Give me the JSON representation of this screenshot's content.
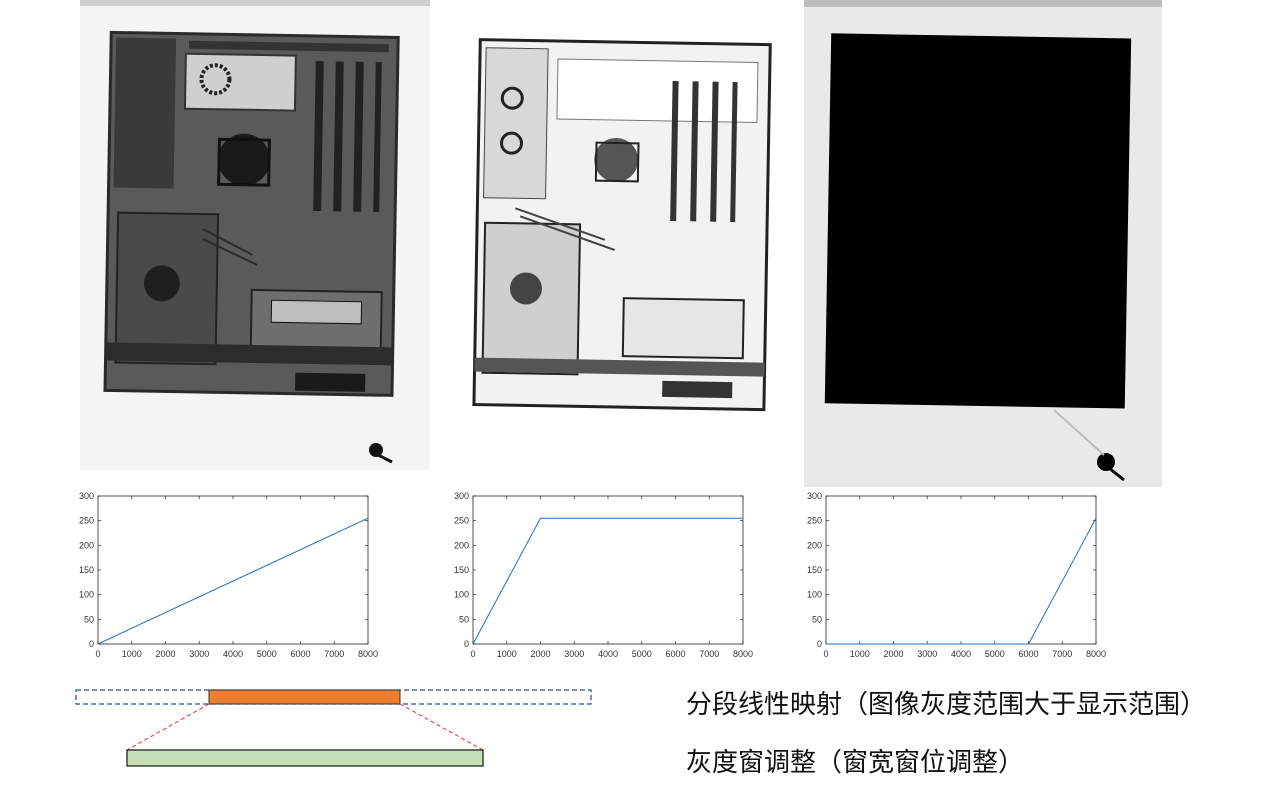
{
  "captions": {
    "line1": "分段线性映射（图像灰度范围大于显示范围）",
    "line2": "灰度窗调整（窗宽窗位调整）"
  },
  "colors": {
    "line": "#1f6fbf",
    "window_fill": "#ed7d31",
    "display_fill": "#c5e0b4",
    "dashed_box": "#2f4f8f",
    "connector": "#e03030"
  },
  "chart_data": [
    {
      "type": "line",
      "title": "",
      "xlabel": "",
      "ylabel": "",
      "xlim": [
        0,
        8000
      ],
      "ylim": [
        0,
        300
      ],
      "xticks": [
        "0",
        "1000",
        "2000",
        "3000",
        "4000",
        "5000",
        "6000",
        "7000",
        "8000"
      ],
      "yticks": [
        "0",
        "50",
        "100",
        "150",
        "200",
        "250",
        "300"
      ],
      "series": [
        {
          "x": [
            0,
            8000
          ],
          "y": [
            0,
            255
          ]
        }
      ]
    },
    {
      "type": "line",
      "title": "",
      "xlabel": "",
      "ylabel": "",
      "xlim": [
        0,
        8000
      ],
      "ylim": [
        0,
        300
      ],
      "xticks": [
        "0",
        "1000",
        "2000",
        "3000",
        "4000",
        "5000",
        "6000",
        "7000",
        "8000"
      ],
      "yticks": [
        "0",
        "50",
        "100",
        "150",
        "200",
        "250",
        "300"
      ],
      "series": [
        {
          "x": [
            0,
            2000,
            8000
          ],
          "y": [
            0,
            255,
            255
          ]
        }
      ]
    },
    {
      "type": "line",
      "title": "",
      "xlabel": "",
      "ylabel": "",
      "xlim": [
        0,
        8000
      ],
      "ylim": [
        0,
        300
      ],
      "xticks": [
        "0",
        "1000",
        "2000",
        "3000",
        "4000",
        "5000",
        "6000",
        "7000",
        "8000"
      ],
      "yticks": [
        "0",
        "50",
        "100",
        "150",
        "200",
        "250",
        "300"
      ],
      "series": [
        {
          "x": [
            0,
            6000,
            8000
          ],
          "y": [
            0,
            0,
            255
          ]
        }
      ]
    }
  ]
}
